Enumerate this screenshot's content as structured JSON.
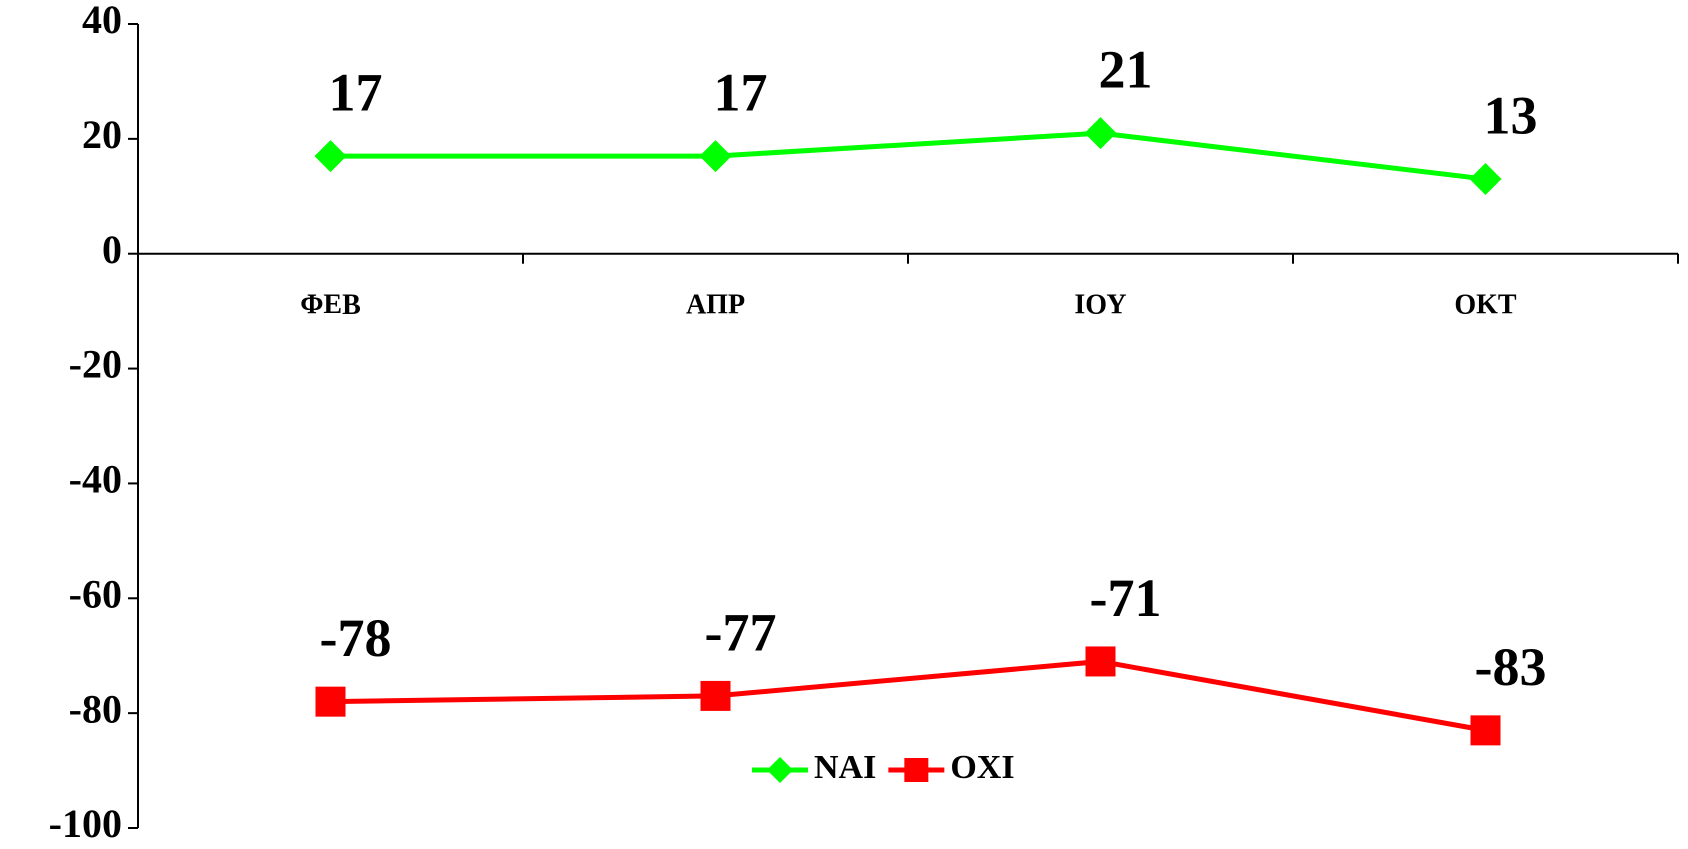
{
  "chart_data": {
    "type": "line",
    "categories": [
      "ΦΕΒ",
      "ΑΠΡ",
      "ΙΟΥ",
      "ΟΚΤ"
    ],
    "series": [
      {
        "name": "NAI",
        "color": "#00ff00",
        "marker": "diamond",
        "values": [
          17,
          17,
          21,
          13
        ]
      },
      {
        "name": "OXI",
        "color": "#ff0000",
        "marker": "square",
        "values": [
          -78,
          -77,
          -71,
          -83
        ]
      }
    ],
    "ylim": [
      -100,
      40
    ],
    "yticks": [
      -100,
      -80,
      -60,
      -40,
      -20,
      0,
      20,
      40
    ],
    "legend": "bottom"
  }
}
